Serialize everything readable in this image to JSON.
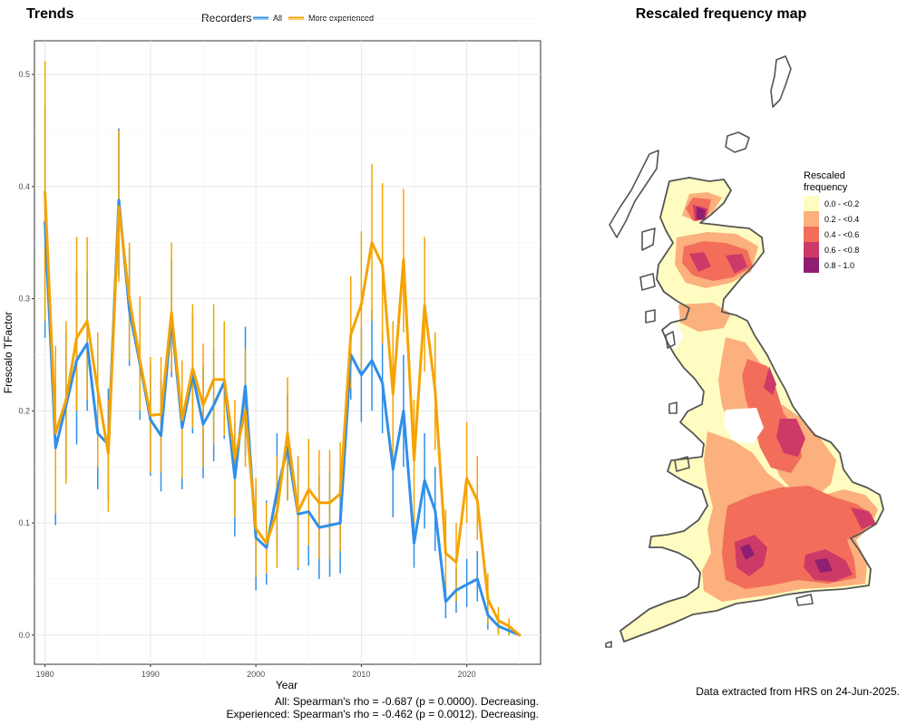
{
  "left_panel": {
    "title": "Trends",
    "legend": {
      "title": "Recorders",
      "items": [
        "All",
        "More experienced"
      ]
    },
    "stats": [
      "All: Spearman's rho = -0.687 (p = 0.0000). Decreasing.",
      "Experienced: Spearman's rho = -0.462 (p = 0.0012). Decreasing."
    ]
  },
  "right_panel": {
    "title": "Rescaled frequency map",
    "legend": {
      "title_lines": [
        "Rescaled",
        "frequency"
      ],
      "items": [
        {
          "label": "0.0 - <0.2",
          "color": "#fefcc0"
        },
        {
          "label": "0.2 - <0.4",
          "color": "#fbb07d"
        },
        {
          "label": "0.4 - <0.6",
          "color": "#f26e5a"
        },
        {
          "label": "0.6 - <0.8",
          "color": "#ce3a67"
        },
        {
          "label": "0.8 - 1.0",
          "color": "#8e1f72"
        }
      ]
    },
    "footer": "Data extracted from HRS on 24-Jun-2025."
  },
  "chart_data": {
    "type": "line",
    "title": "Trends",
    "xlabel": "Year",
    "ylabel": "Frescalo TFactor",
    "xlim": [
      1979,
      2027
    ],
    "ylim": [
      -0.026,
      0.53
    ],
    "xticks": [
      1980,
      1990,
      2000,
      2010,
      2020
    ],
    "yticks": [
      0.0,
      0.1,
      0.2,
      0.3,
      0.4,
      0.5
    ],
    "grid": true,
    "legend_position": "top",
    "colors": {
      "All": "#2f8fea",
      "More experienced": "#f5a300"
    },
    "x": [
      1980,
      1981,
      1982,
      1983,
      1984,
      1985,
      1986,
      1987,
      1988,
      1989,
      1990,
      1991,
      1992,
      1993,
      1994,
      1995,
      1996,
      1997,
      1998,
      1999,
      2000,
      2001,
      2002,
      2003,
      2004,
      2005,
      2006,
      2007,
      2008,
      2009,
      2010,
      2011,
      2012,
      2013,
      2014,
      2015,
      2016,
      2017,
      2018,
      2019,
      2020,
      2021,
      2022,
      2023,
      2024,
      2025
    ],
    "series": [
      {
        "name": "All",
        "values": [
          0.368,
          0.167,
          0.205,
          0.245,
          0.26,
          0.18,
          0.17,
          0.388,
          0.29,
          0.242,
          0.192,
          0.178,
          0.283,
          0.185,
          0.232,
          0.188,
          0.205,
          0.226,
          0.14,
          0.222,
          0.087,
          0.078,
          0.128,
          0.167,
          0.108,
          0.11,
          0.096,
          0.098,
          0.1,
          0.25,
          0.232,
          0.245,
          0.225,
          0.148,
          0.2,
          0.082,
          0.138,
          0.111,
          0.03,
          0.04,
          0.045,
          0.05,
          0.018,
          0.008,
          0.004,
          0.0
        ],
        "lower": [
          0.265,
          0.098,
          0.14,
          0.17,
          0.2,
          0.13,
          0.12,
          0.32,
          0.24,
          0.192,
          0.142,
          0.128,
          0.23,
          0.13,
          0.18,
          0.14,
          0.155,
          0.175,
          0.088,
          0.16,
          0.04,
          0.045,
          0.075,
          0.12,
          0.058,
          0.062,
          0.05,
          0.052,
          0.055,
          0.21,
          0.19,
          0.2,
          0.18,
          0.105,
          0.15,
          0.06,
          0.095,
          0.075,
          0.015,
          0.02,
          0.025,
          0.03,
          0.005,
          0.002,
          0.0,
          0.0
        ],
        "upper": [
          0.472,
          0.235,
          0.27,
          0.325,
          0.325,
          0.23,
          0.22,
          0.452,
          0.345,
          0.295,
          0.242,
          0.228,
          0.335,
          0.24,
          0.285,
          0.24,
          0.255,
          0.277,
          0.19,
          0.275,
          0.132,
          0.12,
          0.18,
          0.215,
          0.158,
          0.16,
          0.142,
          0.145,
          0.148,
          0.3,
          0.275,
          0.29,
          0.27,
          0.195,
          0.25,
          0.105,
          0.18,
          0.15,
          0.048,
          0.06,
          0.068,
          0.075,
          0.032,
          0.015,
          0.01,
          0.0
        ]
      },
      {
        "name": "More experienced",
        "values": [
          0.395,
          0.18,
          0.21,
          0.265,
          0.28,
          0.218,
          0.162,
          0.382,
          0.3,
          0.245,
          0.196,
          0.197,
          0.288,
          0.192,
          0.238,
          0.205,
          0.228,
          0.228,
          0.158,
          0.2,
          0.095,
          0.082,
          0.11,
          0.18,
          0.11,
          0.13,
          0.118,
          0.118,
          0.126,
          0.268,
          0.295,
          0.35,
          0.33,
          0.215,
          0.335,
          0.156,
          0.294,
          0.218,
          0.073,
          0.065,
          0.14,
          0.12,
          0.032,
          0.013,
          0.008,
          0.0
        ],
        "lower": [
          0.28,
          0.108,
          0.135,
          0.2,
          0.21,
          0.15,
          0.11,
          0.315,
          0.245,
          0.2,
          0.145,
          0.145,
          0.235,
          0.14,
          0.185,
          0.15,
          0.17,
          0.178,
          0.105,
          0.15,
          0.052,
          0.055,
          0.06,
          0.12,
          0.06,
          0.08,
          0.068,
          0.068,
          0.075,
          0.22,
          0.235,
          0.28,
          0.26,
          0.155,
          0.27,
          0.1,
          0.235,
          0.165,
          0.04,
          0.03,
          0.1,
          0.085,
          0.01,
          0.0,
          0.0,
          0.0
        ],
        "upper": [
          0.512,
          0.258,
          0.28,
          0.355,
          0.355,
          0.27,
          0.21,
          0.45,
          0.35,
          0.302,
          0.248,
          0.248,
          0.35,
          0.245,
          0.295,
          0.26,
          0.295,
          0.28,
          0.21,
          0.255,
          0.14,
          0.118,
          0.16,
          0.23,
          0.16,
          0.175,
          0.165,
          0.165,
          0.172,
          0.32,
          0.36,
          0.42,
          0.403,
          0.28,
          0.398,
          0.21,
          0.355,
          0.27,
          0.112,
          0.1,
          0.19,
          0.16,
          0.055,
          0.025,
          0.015,
          0.0
        ]
      }
    ]
  }
}
